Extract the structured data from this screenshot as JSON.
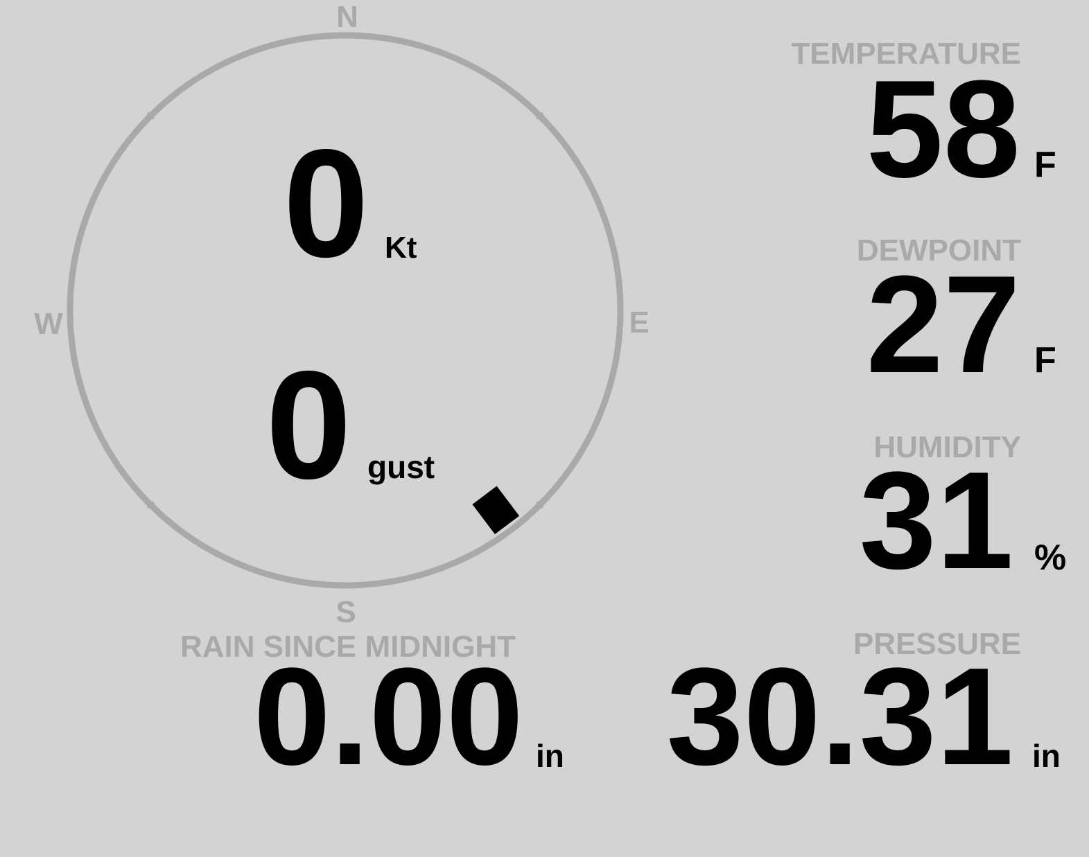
{
  "colors": {
    "background": "#d3d3d3",
    "label": "#a9a9a9",
    "value": "#000000"
  },
  "compass": {
    "north": "N",
    "east": "E",
    "south": "S",
    "west": "W",
    "wind_direction_deg": 143
  },
  "wind": {
    "speed": "0",
    "speed_unit": "Kt",
    "gust": "0",
    "gust_unit": "gust"
  },
  "temperature": {
    "label": "TEMPERATURE",
    "value": "58",
    "unit": "F"
  },
  "dewpoint": {
    "label": "DEWPOINT",
    "value": "27",
    "unit": "F"
  },
  "humidity": {
    "label": "HUMIDITY",
    "value": "31",
    "unit": "%"
  },
  "rain": {
    "label": "RAIN SINCE MIDNIGHT",
    "value": "0.00",
    "unit": "in"
  },
  "pressure": {
    "label": "PRESSURE",
    "value": "30.31",
    "unit": "in"
  }
}
